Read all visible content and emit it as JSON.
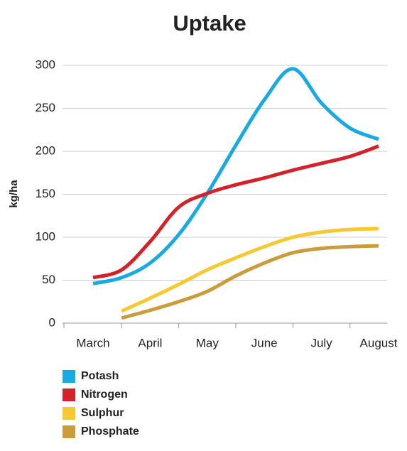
{
  "chart_data": {
    "type": "line",
    "title": "Uptake",
    "y_label": "kg/ha",
    "categories": [
      "March",
      null,
      "April",
      null,
      "May",
      null,
      "June",
      null,
      "July",
      null,
      "August"
    ],
    "series": [
      {
        "name": "Potash",
        "color": "#1aa9e1",
        "values": [
          46,
          53,
          70,
          103,
          151,
          207,
          260,
          296,
          256,
          227,
          214
        ]
      },
      {
        "name": "Nitrogen",
        "color": "#d2232a",
        "values": [
          53,
          62,
          95,
          135,
          151,
          161,
          169,
          178,
          186,
          194,
          206
        ]
      },
      {
        "name": "Sulphur",
        "color": "#f5c932",
        "values": [
          null,
          14,
          29,
          45,
          62,
          76,
          89,
          100,
          106,
          109,
          110
        ]
      },
      {
        "name": "Phosphate",
        "color": "#cb9c3c",
        "values": [
          null,
          6,
          15,
          25,
          37,
          55,
          70,
          82,
          87,
          89,
          90
        ]
      }
    ],
    "ylim": [
      0,
      300
    ],
    "yticks": [
      0,
      50,
      100,
      150,
      200,
      250,
      300
    ],
    "grid": true
  }
}
